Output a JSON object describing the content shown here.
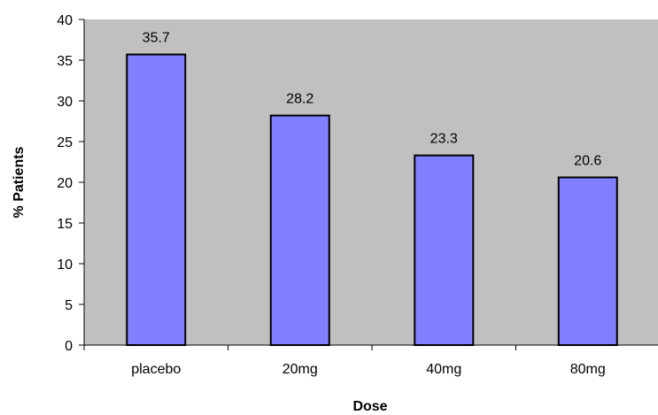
{
  "chart_data": {
    "type": "bar",
    "categories": [
      "placebo",
      "20mg",
      "40mg",
      "80mg"
    ],
    "values": [
      35.7,
      28.2,
      23.3,
      20.6
    ],
    "data_labels": [
      "35.7",
      "28.2",
      "23.3",
      "20.6"
    ],
    "title": "",
    "xlabel": "Dose",
    "ylabel": "% Patients",
    "ylim": [
      0,
      40
    ],
    "yticks": [
      0,
      5,
      10,
      15,
      20,
      25,
      30,
      35,
      40
    ],
    "grid": false,
    "legend": "none",
    "colors": {
      "bar_fill": "#8080FF",
      "bar_stroke": "#000000",
      "plot_background": "#C0C0C0"
    }
  }
}
